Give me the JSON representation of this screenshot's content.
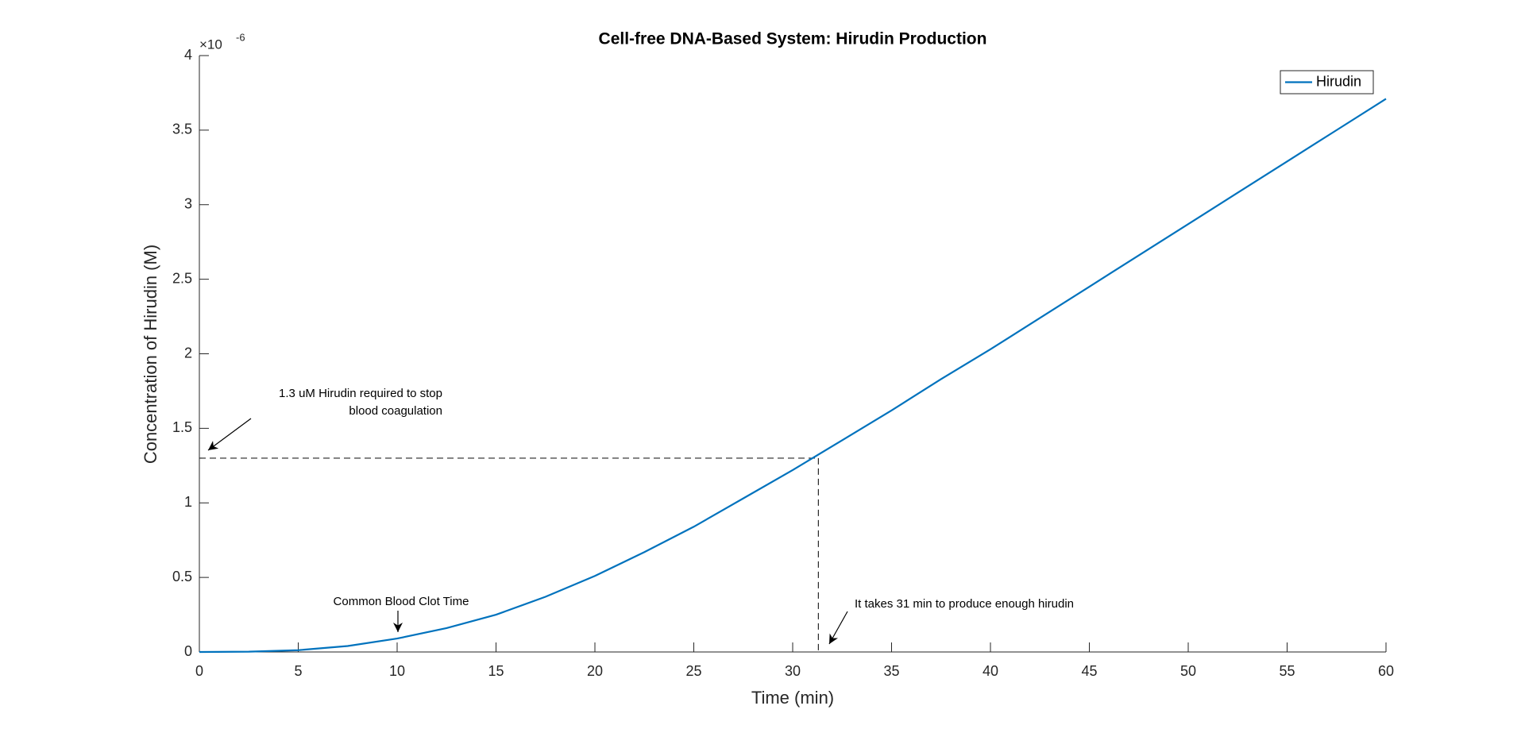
{
  "chart_data": {
    "type": "line",
    "title": "Cell-free DNA-Based System: Hirudin Production",
    "x_label": "Time (min)",
    "y_label": "Concentration of Hirudin (M)",
    "y_multiplier": {
      "base": "×10",
      "exponent": "-6"
    },
    "x": [
      0,
      2.5,
      5,
      7.5,
      10,
      12.5,
      15,
      17.5,
      20,
      22.5,
      25,
      27.5,
      30,
      32.5,
      35,
      37.5,
      40,
      42.5,
      45,
      47.5,
      50,
      52.5,
      55,
      57.5,
      60
    ],
    "series": [
      {
        "name": "Hirudin",
        "color": "#0072bd",
        "values": [
          0,
          0.002,
          0.012,
          0.04,
          0.09,
          0.16,
          0.25,
          0.37,
          0.51,
          0.67,
          0.84,
          1.03,
          1.22,
          1.42,
          1.62,
          1.83,
          2.03,
          2.24,
          2.45,
          2.66,
          2.87,
          3.08,
          3.29,
          3.5,
          3.71
        ]
      }
    ],
    "xlim": [
      0,
      60
    ],
    "ylim": [
      0,
      4
    ],
    "xticks": [
      0,
      5,
      10,
      15,
      20,
      25,
      30,
      35,
      40,
      45,
      50,
      55,
      60
    ],
    "yticks": [
      0,
      0.5,
      1,
      1.5,
      2,
      2.5,
      3,
      3.5,
      4
    ],
    "threshold": {
      "x": 31.3,
      "y": 1.3
    },
    "legend": "northeast",
    "annotations": {
      "required": [
        "1.3 uM Hirudin required to stop",
        "blood coagulation"
      ],
      "clot_time": "Common Blood Clot Time",
      "time_needed": "It takes 31 min to produce enough hirudin"
    }
  }
}
